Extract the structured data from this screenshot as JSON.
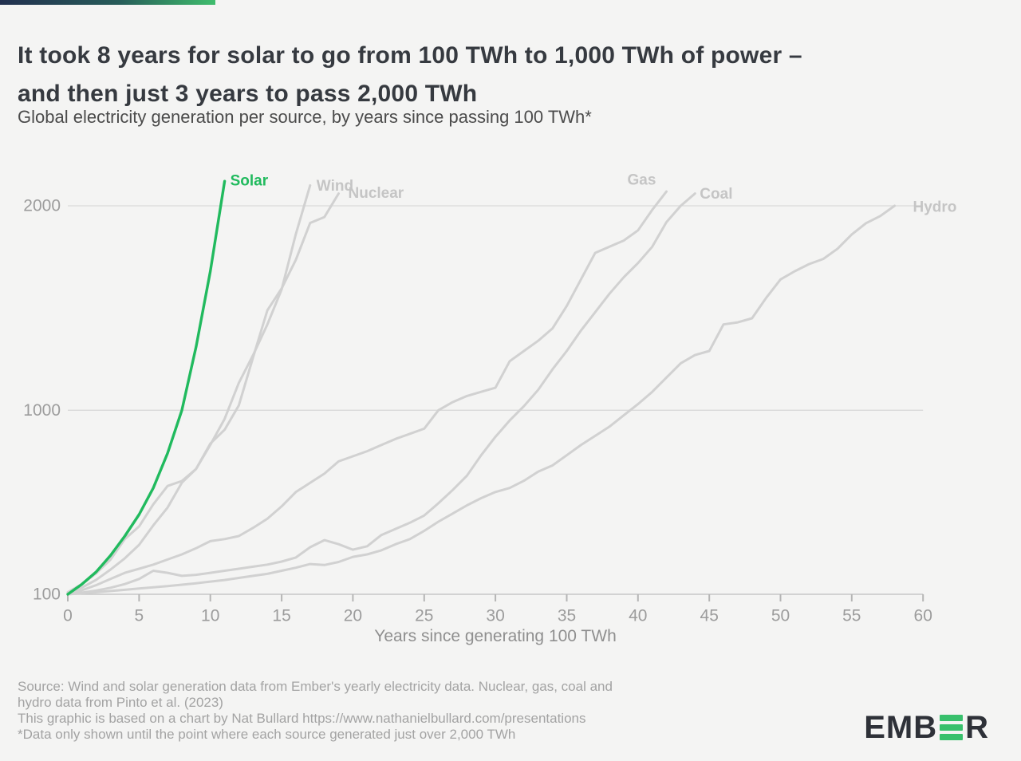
{
  "header": {
    "title_line1": "It took 8 years for solar to go from 100 TWh to 1,000 TWh of power –",
    "title_line2": "and then just 3 years to pass 2,000 TWh",
    "subtitle": "Global electricity generation per source, by years since passing 100 TWh*"
  },
  "chart_data": {
    "type": "line",
    "title": "Global electricity generation per source, by years since passing 100 TWh*",
    "xlabel": "Years since generating 100 TWh",
    "ylabel": "",
    "units": "TWh",
    "xlim": [
      0,
      60
    ],
    "ylim": [
      100,
      2150
    ],
    "x_ticks": [
      0,
      5,
      10,
      15,
      20,
      25,
      30,
      35,
      40,
      45,
      50,
      55,
      60
    ],
    "y_ticks": [
      100,
      1000,
      2000
    ],
    "grid": "horizontal gridlines at 100, 1000 and 2000 TWh",
    "legend": "series labeled at line ends",
    "x_unit": "years since passing 100 TWh (x = index of each value)",
    "colors": {
      "solar_green": "#21ba5e",
      "line_gray": "#d1d1d1",
      "label_gray": "#c5c5c5",
      "axis_text": "#9c9c9c"
    },
    "series": [
      {
        "name": "Hydro",
        "color": "#d1d1d1",
        "label_color": "#c5c5c5",
        "values": [
          100,
          105,
          110,
          116,
          122,
          128,
          134,
          140,
          147,
          154,
          162,
          170,
          180,
          190,
          200,
          215,
          230,
          248,
          243,
          258,
          283,
          295,
          315,
          345,
          370,
          410,
          455,
          495,
          535,
          570,
          600,
          620,
          655,
          700,
          730,
          780,
          830,
          875,
          920,
          975,
          1030,
          1090,
          1160,
          1230,
          1270,
          1290,
          1420,
          1430,
          1450,
          1550,
          1640,
          1680,
          1715,
          1740,
          1790,
          1860,
          1915,
          1950,
          2000
        ]
      },
      {
        "name": "Coal",
        "color": "#d1d1d1",
        "label_color": "#c5c5c5",
        "values": [
          100,
          108,
          118,
          132,
          150,
          175,
          215,
          205,
          190,
          195,
          205,
          215,
          225,
          235,
          245,
          260,
          280,
          330,
          365,
          345,
          318,
          335,
          390,
          420,
          450,
          485,
          545,
          610,
          680,
          780,
          870,
          950,
          1020,
          1100,
          1200,
          1290,
          1390,
          1480,
          1570,
          1650,
          1720,
          1800,
          1920,
          2000,
          2060
        ]
      },
      {
        "name": "Gas",
        "color": "#d1d1d1",
        "label_color": "#c5c5c5",
        "values": [
          100,
          120,
          145,
          175,
          205,
          225,
          245,
          270,
          295,
          325,
          360,
          370,
          385,
          425,
          470,
          530,
          600,
          645,
          690,
          750,
          775,
          800,
          830,
          860,
          885,
          910,
          1000,
          1040,
          1070,
          1090,
          1110,
          1240,
          1290,
          1340,
          1400,
          1510,
          1640,
          1770,
          1800,
          1830,
          1880,
          1980,
          2070
        ]
      },
      {
        "name": "Nuclear",
        "color": "#d1d1d1",
        "label_color": "#c5c5c5",
        "values": [
          110,
          150,
          203,
          270,
          370,
          432,
          540,
          630,
          654,
          713,
          837,
          905,
          1024,
          1259,
          1489,
          1596,
          1736,
          1916,
          1945,
          2060
        ]
      },
      {
        "name": "Wind",
        "color": "#d1d1d1",
        "label_color": "#c5c5c5",
        "values": [
          105,
          133,
          171,
          221,
          276,
          342,
          437,
          524,
          646,
          713,
          831,
          958,
          1134,
          1270,
          1420,
          1591,
          1862,
          2100
        ]
      },
      {
        "name": "Solar",
        "color": "#21ba5e",
        "label_color": "#21ba5e",
        "values": [
          100,
          150,
          210,
          290,
          385,
          490,
          620,
          790,
          1000,
          1310,
          1680,
          2120
        ]
      }
    ]
  },
  "footer": {
    "lines": [
      "Source: Wind and solar generation data from Ember's yearly electricity data. Nuclear, gas, coal and",
      "hydro data from Pinto et al. (2023)",
      "This graphic is based on a chart by Nat Bullard https://www.nathanielbullard.com/presentations",
      "*Data only shown until the point where each source generated just over 2,000 TWh"
    ]
  },
  "logo": {
    "brand": "EMBER",
    "text_before_bars": "EMB",
    "text_after_bars": "R",
    "bar_count": 3,
    "bar_color": "#38c06c",
    "text_color": "#2e3138"
  }
}
